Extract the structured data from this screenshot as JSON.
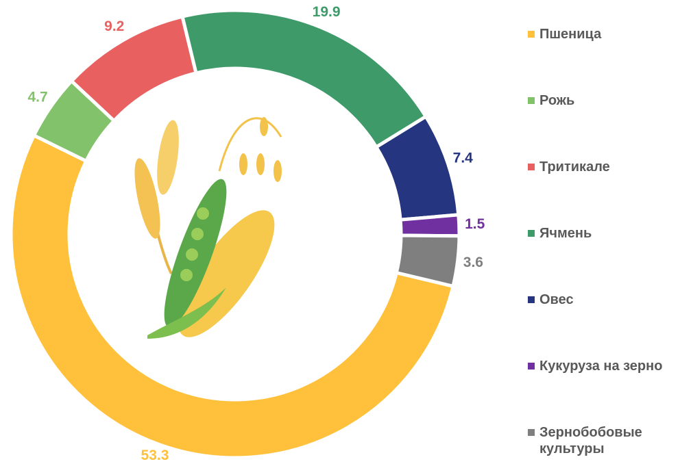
{
  "chart_data": {
    "type": "donut",
    "categories": [
      "Пшеница",
      "Рожь",
      "Тритикале",
      "Ячмень",
      "Овес",
      "Кукуруза на зерно",
      "Зернобобовые культуры"
    ],
    "values": [
      53.3,
      4.7,
      9.2,
      19.9,
      7.4,
      1.5,
      3.6
    ],
    "colors": [
      "#FFC13B",
      "#82C26A",
      "#E96060",
      "#3E9A69",
      "#263580",
      "#7030A0",
      "#7F7F7F"
    ],
    "legend": "right"
  }
}
